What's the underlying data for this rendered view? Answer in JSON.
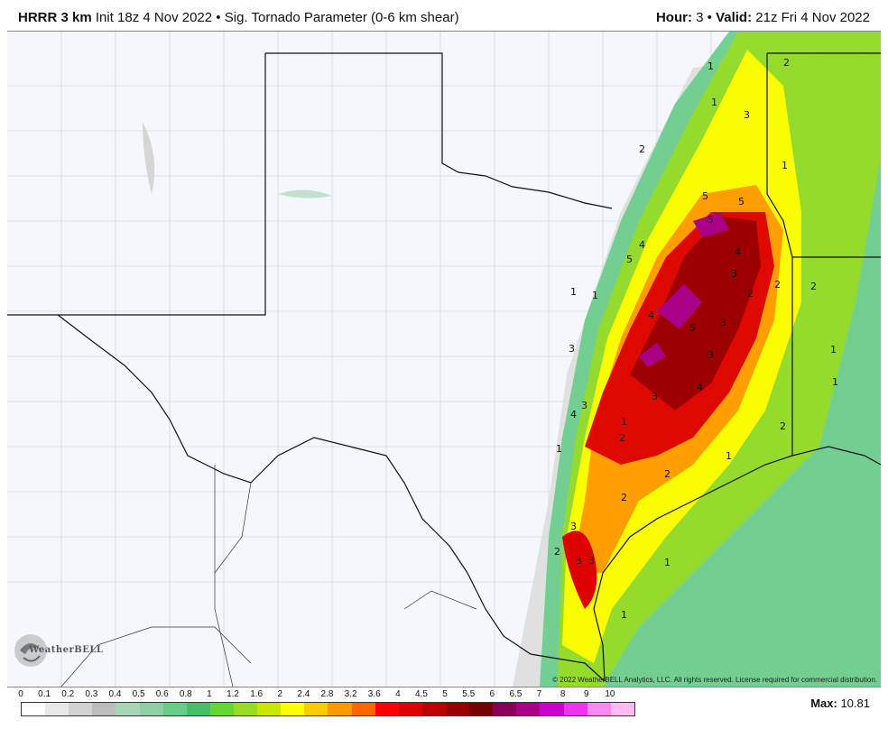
{
  "header": {
    "model": "HRRR 3 km",
    "init": "Init 18z 4 Nov 2022",
    "separator": "•",
    "product": "Sig. Tornado Parameter (0-6 km shear)",
    "hour_label": "Hour:",
    "hour_value": "3",
    "valid_label": "Valid:",
    "valid_value": "21z Fri 4 Nov 2022"
  },
  "map": {
    "copyright": "© 2022 WeatherBELL Analytics, LLC. All rights reserved. License required for commercial distribution.",
    "logo_text": "WeatherBELL",
    "contour_labels": [
      "1",
      "2",
      "3",
      "4",
      "5"
    ]
  },
  "legend": {
    "ticks": [
      "0",
      "0.1",
      "0.2",
      "0.3",
      "0.4",
      "0.5",
      "0.6",
      "0.8",
      "1",
      "1.2",
      "1.6",
      "2",
      "2.4",
      "2.8",
      "3.2",
      "3.6",
      "4",
      "4.5",
      "5",
      "5.5",
      "6",
      "6.5",
      "7",
      "8",
      "9",
      "10"
    ],
    "colors": [
      "#ffffff",
      "#e8e8e8",
      "#d2d2d2",
      "#bcbcbc",
      "#a8d5b8",
      "#8fd0a2",
      "#66cc88",
      "#44c066",
      "#66d633",
      "#99dd22",
      "#c8e600",
      "#ffff00",
      "#ffcc00",
      "#ff9900",
      "#ff6600",
      "#ff0000",
      "#dd0000",
      "#bb0000",
      "#990000",
      "#770000",
      "#880055",
      "#aa0088",
      "#cc00cc",
      "#ee33ee",
      "#ff88ee",
      "#ffbbf0"
    ]
  },
  "max": {
    "label": "Max:",
    "value": "10.81"
  }
}
